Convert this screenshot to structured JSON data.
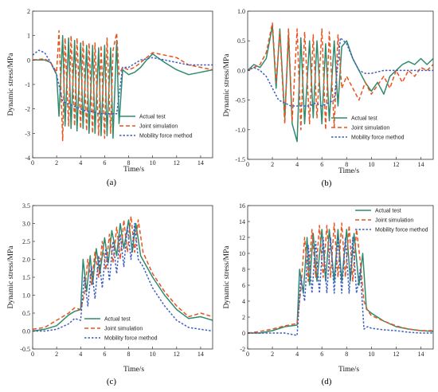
{
  "chart_data": [
    {
      "id": "a",
      "type": "line",
      "caption": "(a)",
      "xlabel": "Time/s",
      "ylabel": "Dynamic stress/MPa",
      "xlim": [
        0,
        15
      ],
      "ylim": [
        -4,
        2
      ],
      "xticks": [
        "0",
        "2",
        "4",
        "6",
        "8",
        "10",
        "12",
        "14"
      ],
      "yticks": [
        "-4",
        "-3",
        "-2",
        "-1",
        "0",
        "1",
        "2"
      ],
      "legend_position": "lower-middle",
      "series": [
        {
          "name": "Actual test",
          "color": "#2e8b6e",
          "dash": "solid",
          "x": [
            0,
            1,
            1.5,
            2,
            2.2,
            2.5,
            2.7,
            3,
            3.2,
            3.5,
            3.7,
            4,
            4.2,
            4.5,
            4.7,
            5,
            5.2,
            5.5,
            5.7,
            6,
            6.2,
            6.5,
            6.7,
            7,
            7.2,
            7.5,
            8,
            8.5,
            9,
            9.5,
            10,
            11,
            12,
            13,
            14,
            15
          ],
          "y": [
            0,
            0,
            -0.1,
            -0.6,
            -2.3,
            1.0,
            -2.7,
            0.9,
            -2.8,
            0.8,
            -2.9,
            0.7,
            -2.8,
            0.6,
            -3.0,
            0.6,
            -3.0,
            0.5,
            -3.1,
            0.6,
            -3.1,
            0.5,
            -3.2,
            0.8,
            -2.6,
            -0.4,
            -0.6,
            -0.5,
            -0.3,
            0,
            0.25,
            -0.1,
            -0.4,
            -0.6,
            -0.5,
            -0.4
          ]
        },
        {
          "name": "Joint simulation",
          "color": "#e8541e",
          "dash": "dashed",
          "x": [
            0,
            1,
            1.5,
            2,
            2.2,
            2.5,
            2.7,
            3,
            3.2,
            3.5,
            3.7,
            4,
            4.2,
            4.5,
            4.7,
            5,
            5.2,
            5.5,
            5.7,
            6,
            6.2,
            6.5,
            6.7,
            7,
            7.2,
            7.5,
            8,
            8.5,
            9,
            9.5,
            10,
            11,
            12,
            13,
            14,
            15
          ],
          "y": [
            0,
            0.05,
            -0.1,
            -0.5,
            1.2,
            -3.3,
            0.9,
            -2.7,
            1.0,
            -2.7,
            0.9,
            -2.8,
            0.8,
            -2.9,
            0.7,
            -3.0,
            0.7,
            -3.1,
            0.6,
            -3.2,
            0.9,
            -3.0,
            0.4,
            1.1,
            -0.6,
            -0.3,
            -0.4,
            -0.3,
            -0.1,
            0.1,
            0.3,
            0.2,
            0.1,
            -0.2,
            -0.3,
            -0.4
          ]
        },
        {
          "name": "Mobility force method",
          "color": "#3f5fc0",
          "dash": "dotted",
          "x": [
            0,
            0.5,
            1,
            1.5,
            2,
            2.5,
            3,
            3.5,
            4,
            4.5,
            5,
            5.5,
            6,
            6.5,
            7,
            7.5,
            8,
            9,
            10,
            11,
            12,
            13,
            14,
            15
          ],
          "y": [
            0.2,
            0.4,
            0.3,
            -0.1,
            -0.6,
            -1.7,
            -1.8,
            -1.9,
            -2.0,
            -2.1,
            -2.1,
            -2.2,
            -2.2,
            -2.2,
            -2.2,
            -0.3,
            -0.3,
            0,
            0.1,
            0,
            -0.1,
            -0.2,
            -0.2,
            -0.2
          ]
        }
      ]
    },
    {
      "id": "b",
      "type": "line",
      "caption": "(b)",
      "xlabel": "Time/s",
      "ylabel": "Dynamic stress/MPa",
      "xlim": [
        0,
        15
      ],
      "ylim": [
        -1.5,
        1.0
      ],
      "xticks": [
        "0",
        "2",
        "4",
        "6",
        "8",
        "10",
        "12",
        "14"
      ],
      "yticks": [
        "-1.5",
        "-1.0",
        "-0.5",
        "0.0",
        "0.5",
        "1.0"
      ],
      "legend_position": "lower-middle",
      "series": [
        {
          "name": "Actual test",
          "color": "#2e8b6e",
          "dash": "solid",
          "x": [
            0,
            0.5,
            1,
            1.5,
            2,
            2.3,
            2.6,
            3,
            3.3,
            3.6,
            4,
            4.3,
            4.6,
            5,
            5.3,
            5.6,
            6,
            6.3,
            6.6,
            7,
            7.3,
            7.6,
            8,
            8.5,
            9,
            9.5,
            10,
            10.5,
            11,
            11.5,
            12,
            12.5,
            13,
            13.5,
            14,
            14.5,
            15
          ],
          "y": [
            0,
            0.1,
            0.05,
            0.2,
            0.75,
            -0.3,
            0.7,
            -0.8,
            0.6,
            -0.9,
            -1.2,
            0.55,
            -0.9,
            0.5,
            -0.8,
            0.5,
            -0.9,
            0.45,
            -0.85,
            0.5,
            -0.6,
            0.4,
            0.5,
            0.2,
            0,
            -0.2,
            -0.35,
            -0.2,
            -0.4,
            -0.1,
            0,
            0.1,
            0.15,
            0.1,
            0.2,
            0.1,
            0.2
          ]
        },
        {
          "name": "Joint simulation",
          "color": "#e8541e",
          "dash": "dashed",
          "x": [
            0,
            0.5,
            1,
            1.5,
            2,
            2.3,
            2.6,
            3,
            3.3,
            3.6,
            4,
            4.3,
            4.6,
            5,
            5.3,
            5.6,
            6,
            6.3,
            6.6,
            7,
            7.3,
            7.6,
            8,
            8.5,
            9,
            9.5,
            10,
            10.5,
            11,
            11.5,
            12,
            12.5,
            13,
            13.5,
            14,
            14.5,
            15
          ],
          "y": [
            0,
            0.05,
            0.1,
            0.3,
            0.8,
            -0.2,
            0.65,
            -0.9,
            0.7,
            -0.85,
            0.7,
            -1.0,
            0.65,
            -0.9,
            0.6,
            -0.8,
            0.7,
            -1.0,
            0.65,
            -0.95,
            0.6,
            -0.3,
            -0.1,
            -0.3,
            -0.5,
            -0.2,
            -0.4,
            -0.25,
            -0.1,
            -0.3,
            0,
            -0.2,
            0,
            -0.1,
            0.05,
            0,
            0.1
          ]
        },
        {
          "name": "Mobility force method",
          "color": "#3f5fc0",
          "dash": "dotted",
          "x": [
            0,
            0.5,
            1,
            1.5,
            2,
            2.5,
            3,
            3.5,
            4,
            4.5,
            5,
            5.5,
            6,
            6.5,
            7,
            7.5,
            8,
            8.5,
            9,
            9.5,
            10,
            11,
            12,
            13,
            14,
            15
          ],
          "y": [
            0,
            0.05,
            0,
            -0.1,
            -0.3,
            -0.5,
            -0.55,
            -0.6,
            -0.6,
            -0.6,
            -0.6,
            -0.55,
            -0.6,
            -0.55,
            -0.5,
            0.55,
            0.45,
            0.2,
            0,
            -0.05,
            -0.05,
            0,
            0,
            0,
            0,
            0
          ]
        }
      ]
    },
    {
      "id": "c",
      "type": "line",
      "caption": "(c)",
      "xlabel": "Time/s",
      "ylabel": "Dynamic stress/MPa",
      "xlim": [
        0,
        15
      ],
      "ylim": [
        -0.5,
        3.5
      ],
      "xticks": [
        "0",
        "2",
        "4",
        "6",
        "8",
        "10",
        "12",
        "14"
      ],
      "yticks": [
        "-0.5",
        "0.0",
        "0.5",
        "1.0",
        "1.5",
        "2.0",
        "2.5",
        "3.0",
        "3.5"
      ],
      "legend_position": "lower-middle",
      "series": [
        {
          "name": "Actual test",
          "color": "#2e8b6e",
          "dash": "solid",
          "x": [
            0,
            1,
            2,
            3,
            3.5,
            4,
            4.2,
            4.5,
            4.8,
            5,
            5.3,
            5.6,
            6,
            6.3,
            6.6,
            7,
            7.3,
            7.6,
            8,
            8.3,
            8.6,
            9,
            9.5,
            10,
            11,
            12,
            13,
            14,
            15
          ],
          "y": [
            0,
            0.05,
            0.15,
            0.45,
            0.55,
            0.6,
            2.0,
            1.1,
            2.1,
            1.3,
            2.3,
            1.6,
            2.6,
            1.9,
            2.8,
            2.1,
            3.0,
            2.3,
            3.1,
            2.2,
            3.0,
            2.1,
            1.8,
            1.5,
            1.0,
            0.6,
            0.35,
            0.4,
            0.3
          ]
        },
        {
          "name": "Joint simulation",
          "color": "#e8541e",
          "dash": "dashed",
          "x": [
            0,
            1,
            2,
            3,
            3.5,
            4,
            4.3,
            4.6,
            4.9,
            5.2,
            5.5,
            5.8,
            6.1,
            6.4,
            6.7,
            7,
            7.3,
            7.6,
            7.9,
            8.2,
            8.5,
            8.8,
            9.2,
            9.6,
            10,
            11,
            12,
            13,
            14,
            15
          ],
          "y": [
            0.05,
            0.1,
            0.3,
            0.5,
            0.65,
            0.6,
            1.0,
            2.0,
            1.3,
            2.2,
            1.5,
            2.5,
            1.7,
            2.7,
            1.9,
            2.9,
            2.0,
            3.1,
            2.2,
            3.2,
            2.2,
            3.1,
            2.2,
            1.9,
            1.6,
            1.1,
            0.7,
            0.4,
            0.5,
            0.4
          ]
        },
        {
          "name": "Mobility force method",
          "color": "#3f5fc0",
          "dash": "dotted",
          "x": [
            0,
            1,
            2,
            3,
            3.5,
            4,
            4.3,
            4.6,
            4.9,
            5.2,
            5.5,
            5.8,
            6.1,
            6.4,
            6.7,
            7,
            7.3,
            7.6,
            7.9,
            8.2,
            8.5,
            8.8,
            9.2,
            9.6,
            10,
            11,
            12,
            13,
            14,
            15
          ],
          "y": [
            0,
            0,
            0.05,
            0.2,
            0.35,
            0.3,
            1.5,
            0.7,
            1.8,
            0.9,
            2.1,
            1.2,
            2.3,
            1.4,
            2.5,
            1.6,
            2.7,
            1.8,
            2.9,
            2.0,
            3.0,
            2.0,
            1.8,
            1.5,
            1.2,
            0.7,
            0.3,
            0.1,
            0.05,
            0.0
          ]
        }
      ]
    },
    {
      "id": "d",
      "type": "line",
      "caption": "(d)",
      "xlabel": "Time/s",
      "ylabel": "Dynamic stress/MPa",
      "xlim": [
        0,
        15
      ],
      "ylim": [
        -2,
        16
      ],
      "xticks": [
        "0",
        "2",
        "4",
        "6",
        "8",
        "10",
        "12",
        "14"
      ],
      "yticks": [
        "-2",
        "0",
        "2",
        "4",
        "6",
        "8",
        "10",
        "12",
        "14",
        "16"
      ],
      "legend_position": "top-right",
      "series": [
        {
          "name": "Actual test",
          "color": "#2e8b6e",
          "dash": "solid",
          "x": [
            0,
            1,
            2,
            3,
            4,
            4.2,
            4.5,
            4.8,
            5,
            5.3,
            5.6,
            6,
            6.3,
            6.6,
            7,
            7.3,
            7.6,
            8,
            8.3,
            8.6,
            9,
            9.3,
            9.6,
            10,
            11,
            12,
            13,
            14,
            15
          ],
          "y": [
            0,
            0,
            0.3,
            0.8,
            1.0,
            8.0,
            5.0,
            12.0,
            6.0,
            12.5,
            6.5,
            13.0,
            6.5,
            13.0,
            6.5,
            13.0,
            6.5,
            13.0,
            6.5,
            12.5,
            6.0,
            10.0,
            3.0,
            2.5,
            1.5,
            0.8,
            0.5,
            0.3,
            0.2
          ]
        },
        {
          "name": "Joint simulation",
          "color": "#e8541e",
          "dash": "dashed",
          "x": [
            0,
            1,
            2,
            3,
            4,
            4.3,
            4.6,
            4.9,
            5.2,
            5.5,
            5.8,
            6.1,
            6.4,
            6.7,
            7,
            7.3,
            7.6,
            7.9,
            8.2,
            8.5,
            8.8,
            9.1,
            9.4,
            9.7,
            10,
            11,
            12,
            13,
            14,
            15
          ],
          "y": [
            0,
            0.2,
            0.5,
            0.9,
            1.2,
            5.5,
            12.0,
            6.5,
            13.0,
            7.0,
            13.5,
            7.0,
            13.5,
            7.0,
            13.8,
            7.0,
            13.8,
            7.0,
            13.5,
            6.5,
            13.0,
            9.0,
            4.0,
            2.8,
            2.2,
            1.5,
            0.9,
            0.5,
            0.3,
            0.3
          ]
        },
        {
          "name": "Mobility force method",
          "color": "#3f5fc0",
          "dash": "dotted",
          "x": [
            0,
            1,
            2,
            3,
            4,
            4.3,
            4.6,
            4.9,
            5.2,
            5.5,
            5.8,
            6.1,
            6.4,
            6.7,
            7,
            7.3,
            7.6,
            7.9,
            8.2,
            8.5,
            8.8,
            9.1,
            9.4,
            9.7,
            10,
            11,
            12,
            13,
            14,
            15
          ],
          "y": [
            0,
            0,
            0,
            0,
            -0.3,
            7.0,
            4.0,
            11.0,
            5.0,
            11.5,
            5.0,
            12.0,
            5.0,
            12.0,
            5.0,
            12.0,
            5.0,
            12.0,
            5.0,
            12.0,
            5.0,
            8.0,
            0.5,
            0.8,
            0.6,
            0.4,
            0.3,
            0.1,
            0,
            0
          ]
        }
      ]
    }
  ]
}
